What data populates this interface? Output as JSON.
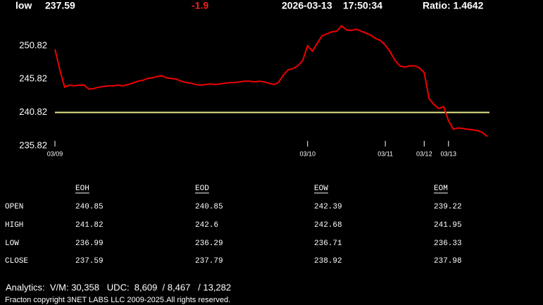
{
  "header": {
    "label": "low",
    "price": 237.59,
    "change": -1.9,
    "date": "2026-03-13",
    "time": "17:50:34",
    "ratio": "Ratio: 1.4642"
  },
  "chart_data": {
    "type": "line",
    "color": "#ee0000",
    "categories": [
      "03/09",
      null,
      null,
      null,
      null,
      null,
      null,
      null,
      null,
      null,
      null,
      null,
      null,
      null,
      null,
      null,
      null,
      null,
      null,
      null,
      null,
      null,
      null,
      null,
      null,
      null,
      null,
      null,
      null,
      null,
      null,
      null,
      null,
      null,
      null,
      null,
      null,
      null,
      null,
      null,
      null,
      null,
      null,
      null,
      null,
      null,
      null,
      null,
      null,
      null,
      null,
      null,
      "03/10",
      null,
      null,
      null,
      null,
      null,
      null,
      null,
      null,
      null,
      null,
      null,
      null,
      null,
      null,
      null,
      "03/11",
      null,
      null,
      null,
      null,
      null,
      null,
      null,
      "03/12",
      null,
      null,
      null,
      null,
      "03/13",
      null,
      null,
      null,
      null,
      null,
      null,
      null,
      null
    ],
    "values": [
      250.3,
      247.2,
      244.6,
      244.9,
      244.8,
      244.9,
      244.9,
      244.3,
      244.4,
      244.6,
      244.7,
      244.8,
      244.8,
      244.9,
      244.8,
      245.0,
      245.2,
      245.5,
      245.6,
      245.9,
      246.0,
      246.2,
      246.3,
      246.0,
      245.9,
      245.8,
      245.5,
      245.3,
      245.2,
      245.0,
      244.9,
      245.0,
      245.1,
      245.0,
      245.1,
      245.2,
      245.3,
      245.3,
      245.4,
      245.5,
      245.5,
      245.4,
      245.5,
      245.4,
      245.2,
      245.0,
      245.3,
      246.4,
      247.2,
      247.4,
      247.8,
      248.6,
      250.8,
      250.0,
      251.2,
      252.3,
      252.6,
      252.9,
      253.0,
      253.8,
      253.2,
      253.1,
      253.3,
      253.0,
      252.7,
      252.4,
      251.9,
      251.6,
      250.9,
      249.9,
      248.6,
      247.8,
      247.6,
      247.8,
      247.8,
      247.5,
      246.8,
      242.9,
      242.0,
      241.4,
      241.7,
      239.6,
      238.3,
      238.5,
      238.4,
      238.3,
      238.2,
      238.1,
      237.8,
      237.2
    ],
    "ylim": [
      235.5,
      254.5
    ],
    "yticks": [
      235.82,
      240.82,
      245.82,
      250.82
    ],
    "reference_line": 240.82,
    "reference_color": "#e6e68c"
  },
  "table": {
    "columns": [
      "EOH",
      "EOD",
      "EOW",
      "EOM"
    ],
    "rows": [
      [
        "OPEN",
        240.85,
        240.85,
        242.39,
        239.22
      ],
      [
        "HIGH",
        241.82,
        242.6,
        242.68,
        241.95
      ],
      [
        "LOW",
        236.99,
        236.29,
        236.71,
        236.33
      ],
      [
        "CLOSE",
        237.59,
        237.79,
        238.92,
        237.98
      ]
    ]
  },
  "footer": {
    "analytics": "Analytics:  V/M: 30,358   UDC:  8,609  / 8,467   / 13,282",
    "copyright": "Fracton copyright 3NET LABS LLC 2009-2025.All rights reserved."
  }
}
